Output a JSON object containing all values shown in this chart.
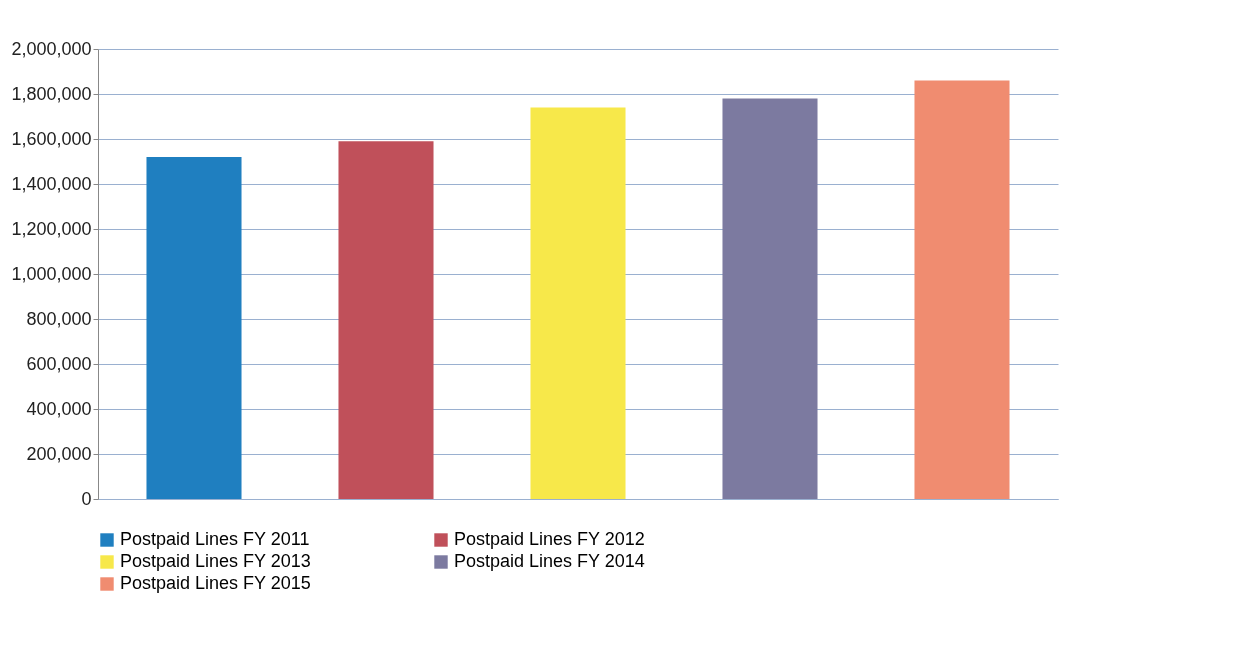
{
  "chart_data": {
    "type": "bar",
    "categories": [
      null,
      null,
      null,
      null,
      null
    ],
    "series": [
      {
        "name": "Postpaid Lines FY 2011",
        "color": "#1f7fc0",
        "values": [
          1520000,
          null,
          null,
          null,
          null
        ]
      },
      {
        "name": "Postpaid Lines FY 2012",
        "color": "#c0505a",
        "values": [
          null,
          1590000,
          null,
          null,
          null
        ]
      },
      {
        "name": "Postpaid Lines FY 2013",
        "color": "#f7e84a",
        "values": [
          null,
          null,
          1740000,
          null,
          null
        ]
      },
      {
        "name": "Postpaid Lines FY 2014",
        "color": "#7c7aa0",
        "values": [
          null,
          null,
          null,
          1780000,
          null
        ]
      },
      {
        "name": "Postpaid Lines FY 2015",
        "color": "#f08c70",
        "values": [
          null,
          null,
          null,
          null,
          1860000
        ]
      }
    ],
    "ylim": [
      0,
      2000000
    ],
    "yticks": [
      0,
      {
        "value": 200000,
        "label": "200,000"
      },
      {
        "value": 400000,
        "label": "400,000"
      },
      {
        "value": 600000,
        "label": "600,000"
      },
      {
        "value": 800000,
        "label": "800,000"
      },
      {
        "value": 1000000,
        "label": "1,000,000"
      },
      {
        "value": 1200000,
        "label": "1,200,000"
      },
      {
        "value": 1400000,
        "label": "1,400,000"
      },
      {
        "value": 1600000,
        "label": "1,600,000"
      },
      {
        "value": 1800000,
        "label": "1,800,000"
      },
      {
        "value": 2000000,
        "label": "2,000,000"
      }
    ],
    "grid": "y",
    "legend": "bottom"
  }
}
